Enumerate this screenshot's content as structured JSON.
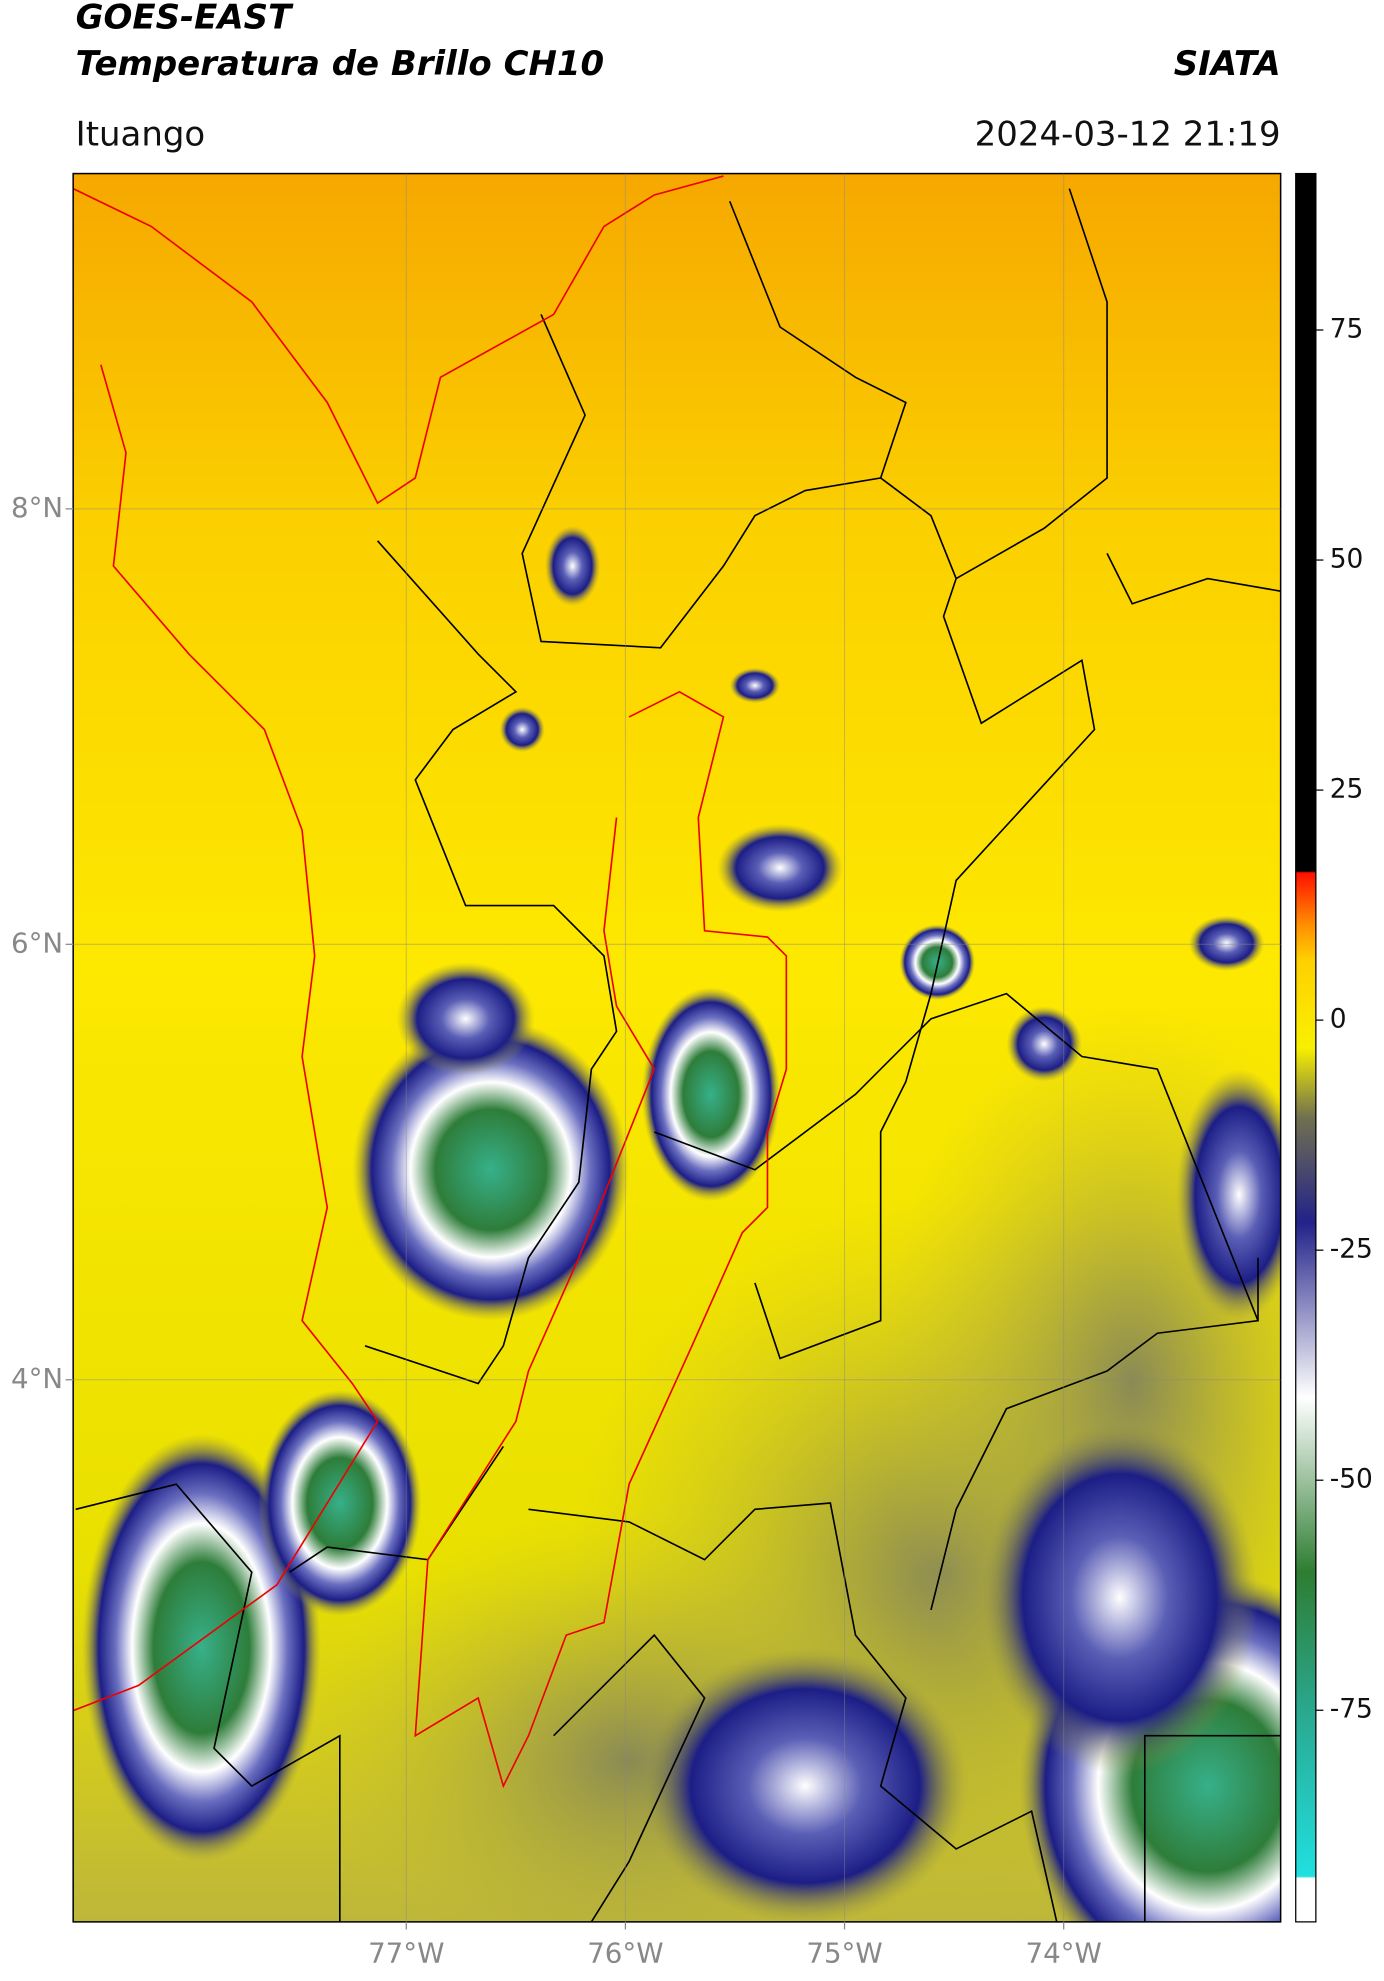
{
  "header": {
    "title": "GOES-EAST",
    "subtitle": "Temperatura de Brillo CH10",
    "source": "SIATA",
    "location": "Ituango",
    "datetime": "2024-03-12 21:19"
  },
  "map": {
    "xlim": [
      -78.52,
      -73.01
    ],
    "ylim": [
      1.51,
      9.54
    ],
    "xticks": [
      {
        "value": -77,
        "label": "77°W"
      },
      {
        "value": -76,
        "label": "76°W"
      },
      {
        "value": -75,
        "label": "75°W"
      },
      {
        "value": -74,
        "label": "74°W"
      }
    ],
    "yticks": [
      {
        "value": 8,
        "label": "8°N"
      },
      {
        "value": 6,
        "label": "6°N"
      },
      {
        "value": 4,
        "label": "4°N"
      }
    ]
  },
  "colorbar": {
    "lim": [
      -98,
      92
    ],
    "ticks": [
      75,
      50,
      25,
      0,
      -25,
      -50,
      -75
    ]
  }
}
